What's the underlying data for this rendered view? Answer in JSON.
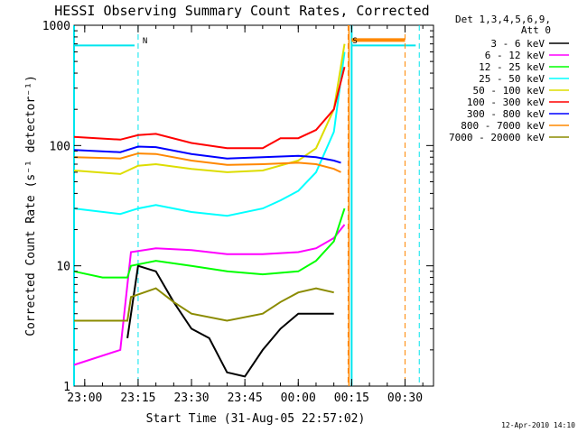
{
  "chart_data": {
    "type": "line",
    "title": "HESSI Observing Summary Count Rates, Corrected",
    "xlabel": "Start Time (31-Aug-05 22:57:02)",
    "ylabel": "Corrected Count Rate (s⁻¹ detector⁻¹)",
    "y_scale": "log",
    "ylim": [
      1,
      1000
    ],
    "xlim": [
      "22:57",
      "00:38"
    ],
    "x_tick_labels": [
      "23:00",
      "23:15",
      "23:30",
      "23:45",
      "00:00",
      "00:15",
      "00:30"
    ],
    "y_tick_labels": [
      "1",
      "10",
      "100",
      "1000"
    ],
    "grid": false,
    "legend_header": [
      "Det 1,3,4,5,6,9,",
      "Att 0"
    ],
    "legend_position": "right",
    "timestamp": "12-Apr-2010 14:10",
    "flags": [
      {
        "label": "N",
        "time": "23:15",
        "color": "#00e5ee"
      },
      {
        "label": "S",
        "time": "00:14",
        "color": "#ff8800"
      }
    ],
    "series": [
      {
        "name": "3 - 6 keV",
        "color": "#000000",
        "x": [
          "23:12",
          "23:15",
          "23:20",
          "23:25",
          "23:30",
          "23:35",
          "23:40",
          "23:45",
          "23:50",
          "23:55",
          "00:00",
          "00:05",
          "00:10"
        ],
        "values": [
          2.5,
          10,
          9,
          5,
          3,
          2.5,
          1.3,
          1.2,
          2,
          3,
          4,
          4,
          4
        ]
      },
      {
        "name": "6 - 12 keV",
        "color": "#ff00ff",
        "x": [
          "22:57",
          "23:10",
          "23:13",
          "23:20",
          "23:30",
          "23:40",
          "23:50",
          "00:00",
          "00:05",
          "00:10",
          "00:13"
        ],
        "values": [
          1.5,
          2,
          13,
          14,
          13.5,
          12.5,
          12.5,
          13,
          14,
          17,
          22
        ]
      },
      {
        "name": "12 - 25 keV",
        "color": "#00ff00",
        "x": [
          "22:57",
          "23:05",
          "23:12",
          "23:13",
          "23:20",
          "23:30",
          "23:40",
          "23:50",
          "00:00",
          "00:05",
          "00:10",
          "00:13"
        ],
        "values": [
          9,
          8,
          8,
          10,
          11,
          10,
          9,
          8.5,
          9,
          11,
          16,
          30
        ]
      },
      {
        "name": "25 - 50 keV",
        "color": "#00ffff",
        "x": [
          "22:57",
          "23:10",
          "23:15",
          "23:20",
          "23:30",
          "23:40",
          "23:50",
          "23:55",
          "00:00",
          "00:05",
          "00:10",
          "00:13"
        ],
        "values": [
          30,
          27,
          30,
          32,
          28,
          26,
          30,
          35,
          42,
          60,
          130,
          600
        ]
      },
      {
        "name": "50 - 100 keV",
        "color": "#dddd00",
        "x": [
          "22:57",
          "23:10",
          "23:15",
          "23:20",
          "23:30",
          "23:40",
          "23:50",
          "00:00",
          "00:05",
          "00:10",
          "00:13"
        ],
        "values": [
          62,
          58,
          68,
          70,
          64,
          60,
          62,
          75,
          95,
          200,
          700
        ]
      },
      {
        "name": "100 - 300 keV",
        "color": "#ff0000",
        "x": [
          "22:57",
          "23:10",
          "23:15",
          "23:20",
          "23:30",
          "23:40",
          "23:50",
          "23:55",
          "00:00",
          "00:05",
          "00:10",
          "00:13"
        ],
        "values": [
          118,
          112,
          122,
          125,
          105,
          95,
          95,
          115,
          115,
          135,
          200,
          450
        ]
      },
      {
        "name": "300 - 800 keV",
        "color": "#0000ff",
        "x": [
          "22:57",
          "23:10",
          "23:15",
          "23:20",
          "23:30",
          "23:40",
          "23:50",
          "00:00",
          "00:05",
          "00:10",
          "00:12"
        ],
        "values": [
          92,
          88,
          98,
          97,
          85,
          78,
          80,
          82,
          80,
          75,
          72
        ]
      },
      {
        "name": "800 - 7000 keV",
        "color": "#ff8800",
        "x": [
          "22:57",
          "23:10",
          "23:15",
          "23:20",
          "23:30",
          "23:40",
          "23:50",
          "00:00",
          "00:05",
          "00:10",
          "00:12"
        ],
        "values": [
          80,
          78,
          86,
          85,
          75,
          69,
          70,
          72,
          70,
          64,
          60
        ]
      },
      {
        "name": "7000 - 20000 keV",
        "color": "#8b8b00",
        "x": [
          "22:57",
          "23:12",
          "23:13",
          "23:20",
          "23:25",
          "23:30",
          "23:40",
          "23:50",
          "23:55",
          "00:00",
          "00:05",
          "00:10"
        ],
        "values": [
          3.5,
          3.5,
          5.5,
          6.5,
          5,
          4,
          3.5,
          4,
          5,
          6,
          6.5,
          6
        ]
      }
    ],
    "attenuator_line": {
      "color": "#00e5ee",
      "value": 680,
      "segments": [
        [
          "22:57",
          "23:14"
        ],
        [
          "00:15",
          "00:33"
        ]
      ]
    },
    "orange_bar": {
      "color": "#ff8800",
      "value": 680,
      "segments": [
        [
          "00:15",
          "00:30"
        ]
      ]
    }
  }
}
